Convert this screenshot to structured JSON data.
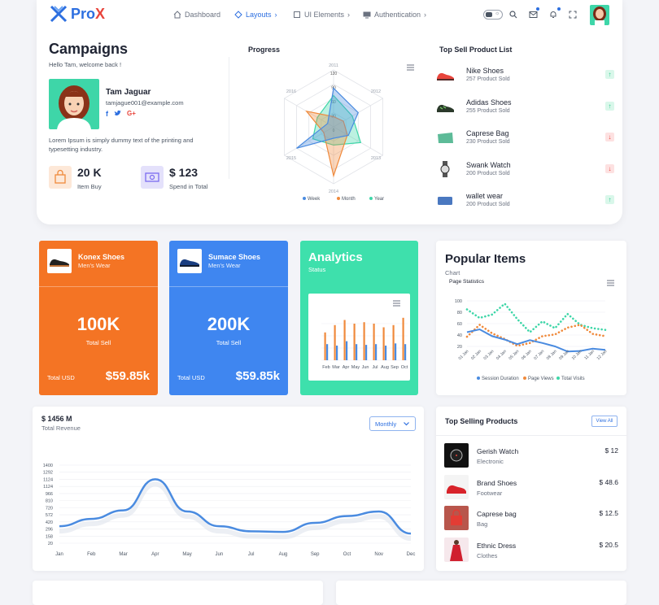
{
  "brand": {
    "pro": "Pro",
    "x": "X"
  },
  "nav": {
    "items": [
      {
        "label": "Dashboard",
        "arrow": "",
        "icon": "home-icon"
      },
      {
        "label": "Layouts",
        "arrow": "›",
        "icon": "diamond-icon"
      },
      {
        "label": "UI Elements",
        "arrow": "›",
        "icon": "box-icon"
      },
      {
        "label": "Authentication",
        "arrow": "›",
        "icon": "monitor-icon"
      }
    ]
  },
  "campaigns": {
    "title": "Campaigns",
    "welcome": "Hello Tam, welcome back !",
    "user_name": "Tam Jaguar",
    "user_email": "tamjague001@example.com",
    "description": "Lorem Ipsum is simply dummy text of the printing and typesetting industry.",
    "stats": [
      {
        "value": "20 K",
        "label": "Item Buy"
      },
      {
        "value": "$ 123",
        "label": "Spend in Total"
      }
    ]
  },
  "progress": {
    "title": "Progress",
    "axes": [
      "2011",
      "2012",
      "2013",
      "2014",
      "2015",
      "2016"
    ],
    "rings": [
      "120",
      "90",
      "60",
      "30",
      "0"
    ],
    "legend": [
      "Week",
      "Month",
      "Year"
    ],
    "colors": {
      "week": "#4a8be0",
      "month": "#f08a3c",
      "year": "#3ed6a8"
    }
  },
  "top_sell": {
    "title": "Top Sell Product List",
    "items": [
      {
        "name": "Nike Shoes",
        "sub": "257 Product Sold",
        "trend": "up",
        "arrow": "↑"
      },
      {
        "name": "Adidas Shoes",
        "sub": "255 Product Sold",
        "trend": "up",
        "arrow": "↑"
      },
      {
        "name": "Caprese Bag",
        "sub": "230 Product Sold",
        "trend": "down",
        "arrow": "↓"
      },
      {
        "name": "Swank Watch",
        "sub": "200 Product Sold",
        "trend": "down",
        "arrow": "↓"
      },
      {
        "name": "wallet wear",
        "sub": "200 Product Sold",
        "trend": "up",
        "arrow": "↑"
      }
    ]
  },
  "shoe_cards": [
    {
      "name": "Konex Shoes",
      "sub": "Men's Wear",
      "value": "100K",
      "sell_label": "Total Sell",
      "usd_label": "Total USD",
      "amount": "$59.85k",
      "color": "#f47424"
    },
    {
      "name": "Sumace Shoes",
      "sub": "Men's Wear",
      "value": "200K",
      "sell_label": "Total Sell",
      "usd_label": "Total USD",
      "amount": "$59.85k",
      "color": "#3f86f0"
    }
  ],
  "analytics": {
    "title": "Analytics",
    "sub": "Status",
    "months": [
      "Feb",
      "Mar",
      "Apr",
      "May",
      "Jun",
      "Jul",
      "Aug",
      "Sep",
      "Oct"
    ],
    "orange": [
      38,
      48,
      55,
      50,
      52,
      50,
      45,
      48,
      58
    ],
    "blue": [
      22,
      20,
      26,
      22,
      21,
      22,
      20,
      23,
      22
    ],
    "colors": {
      "orange": "#f08a3c",
      "blue": "#4a8be0"
    }
  },
  "popular": {
    "title": "Popular Items",
    "sub": "Chart",
    "chart_title": "Page Statistics",
    "yticks": [
      "100",
      "80",
      "60",
      "40",
      "20"
    ],
    "xlabels": [
      "01 Jan",
      "02 Jan",
      "03 Jan",
      "04 Jan",
      "05 Jan",
      "06 Jan",
      "07 Jan",
      "08 Jan",
      "09 Jan",
      "10 Jan",
      "11 Jan",
      "12 Jan"
    ],
    "legend": [
      "Session Duration",
      "Page Views",
      "Total Visits"
    ],
    "session": [
      45,
      50,
      38,
      32,
      24,
      31,
      26,
      20,
      11,
      12,
      16,
      14
    ],
    "views": [
      37,
      58,
      43,
      33,
      21,
      26,
      38,
      41,
      53,
      58,
      42,
      38
    ],
    "visits": [
      85,
      70,
      76,
      95,
      68,
      45,
      64,
      52,
      77,
      58,
      52,
      49
    ],
    "colors": {
      "session": "#4a8be0",
      "views": "#f08a3c",
      "visits": "#3ed6a8"
    }
  },
  "revenue": {
    "amount": "$ 1456 M",
    "label": "Total Revenue",
    "dropdown": "Monthly",
    "yticks": [
      "1400",
      "1292",
      "1124",
      "1124",
      "966",
      "810",
      "720",
      "572",
      "420",
      "296",
      "158",
      "20"
    ],
    "months": [
      "Jan",
      "Feb",
      "Mar",
      "Apr",
      "May",
      "Jun",
      "Jul",
      "Aug",
      "Sep",
      "Oct",
      "Nov",
      "Dec"
    ],
    "values": [
      320,
      450,
      600,
      1150,
      580,
      320,
      230,
      220,
      380,
      500,
      580,
      190
    ],
    "color": "#4a8be0"
  },
  "top_selling": {
    "title": "Top Selling Products",
    "view_all": "View All",
    "items": [
      {
        "name": "Gerish Watch",
        "cat": "Electronic",
        "price": "$ 12"
      },
      {
        "name": "Brand Shoes",
        "cat": "Footwear",
        "price": "$ 48.6"
      },
      {
        "name": "Caprese bag",
        "cat": "Bag",
        "price": "$ 12.5"
      },
      {
        "name": "Ethnic Dress",
        "cat": "Clothes",
        "price": "$ 20.5"
      }
    ]
  }
}
